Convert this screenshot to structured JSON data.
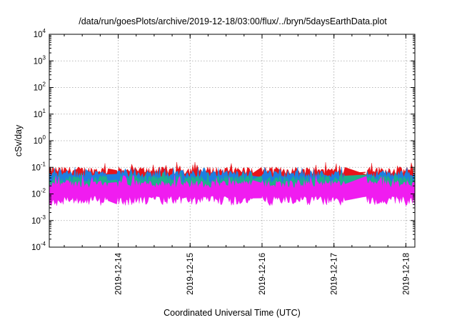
{
  "chart_data": {
    "type": "area",
    "title": "/data/run/goesPlots/archive/2019-12-18/03:00/flux/../bryn/5daysEarthData.plot",
    "xlabel": "Coordinated Universal Time (UTC)",
    "ylabel": "cSv/day",
    "y_scale": "log",
    "ylim": [
      0.0001,
      10000
    ],
    "xlim": [
      "2019-12-13T01:00",
      "2019-12-18T03:00"
    ],
    "y_ticks": [
      {
        "value": 0.0001,
        "base": "10",
        "exp": "-4"
      },
      {
        "value": 0.001,
        "base": "10",
        "exp": "-3"
      },
      {
        "value": 0.01,
        "base": "10",
        "exp": "-2"
      },
      {
        "value": 0.1,
        "base": "10",
        "exp": "-1"
      },
      {
        "value": 1,
        "base": "10",
        "exp": "0"
      },
      {
        "value": 10,
        "base": "10",
        "exp": "1"
      },
      {
        "value": 100,
        "base": "10",
        "exp": "2"
      },
      {
        "value": 1000,
        "base": "10",
        "exp": "3"
      },
      {
        "value": 10000,
        "base": "10",
        "exp": "4"
      }
    ],
    "x_ticks": [
      {
        "value": "2019-12-14T00:00",
        "label": "2019-12-14"
      },
      {
        "value": "2019-12-15T00:00",
        "label": "2019-12-15"
      },
      {
        "value": "2019-12-16T00:00",
        "label": "2019-12-16"
      },
      {
        "value": "2019-12-17T00:00",
        "label": "2019-12-17"
      },
      {
        "value": "2019-12-18T00:00",
        "label": "2019-12-18"
      }
    ],
    "grid": true,
    "gaps": [
      [
        "2019-12-13T21:00",
        "2019-12-13T23:30"
      ],
      [
        "2019-12-15T21:00",
        "2019-12-15T23:30"
      ],
      [
        "2019-12-17T04:00",
        "2019-12-17T10:30"
      ]
    ],
    "series": [
      {
        "color": "#e8141a",
        "upper": 0.095,
        "lower": 0.035,
        "spike": 0.14
      },
      {
        "color": "#1e7fe0",
        "upper": 0.07,
        "lower": 0.02,
        "spike": 0.09
      },
      {
        "color": "#1fb08a",
        "upper": 0.045,
        "lower": 0.012,
        "spike": 0.06
      },
      {
        "color": "#f01cf0",
        "upper": 0.03,
        "lower": 0.006,
        "spike": 0.045
      }
    ]
  }
}
